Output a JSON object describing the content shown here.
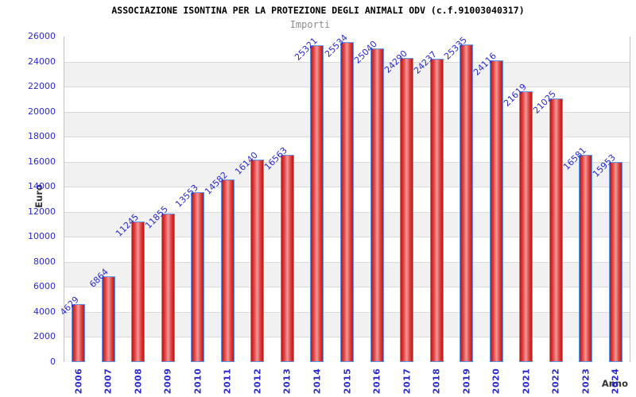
{
  "chart_data": {
    "type": "bar",
    "title": "ASSOCIAZIONE ISONTINA PER LA PROTEZIONE DEGLI ANIMALI ODV (c.f.91003040317)",
    "subtitle": "Importi",
    "xlabel": "Anno",
    "ylabel": "Euro",
    "categories": [
      "2006",
      "2007",
      "2008",
      "2009",
      "2010",
      "2011",
      "2012",
      "2013",
      "2014",
      "2015",
      "2016",
      "2017",
      "2018",
      "2019",
      "2020",
      "2021",
      "2022",
      "2023",
      "2024"
    ],
    "values": [
      4629,
      6864,
      11245,
      11855,
      13553,
      14582,
      16140,
      16563,
      25321,
      25534,
      25040,
      24290,
      24237,
      25335,
      24116,
      21619,
      21025,
      16581,
      15953
    ],
    "ylim": [
      0,
      26000
    ],
    "ytick_step": 2000,
    "grid": "horizontal-bands-alternating",
    "legend": "none"
  },
  "colors": {
    "label_blue": "#2a2acc",
    "bar_border": "#5e96e8",
    "bar_edge_red": "#b71919",
    "bar_mid_red": "#dd3c3c",
    "bar_center_light": "#f49898",
    "band_gray": "#f1f1f1",
    "band_white": "#ffffff",
    "gridline": "#d9d9d9",
    "frame": "#c2c2c2",
    "axis_title_color": "#333333",
    "subtitle_gray": "#8c8c8c",
    "title_color": "#000000"
  }
}
